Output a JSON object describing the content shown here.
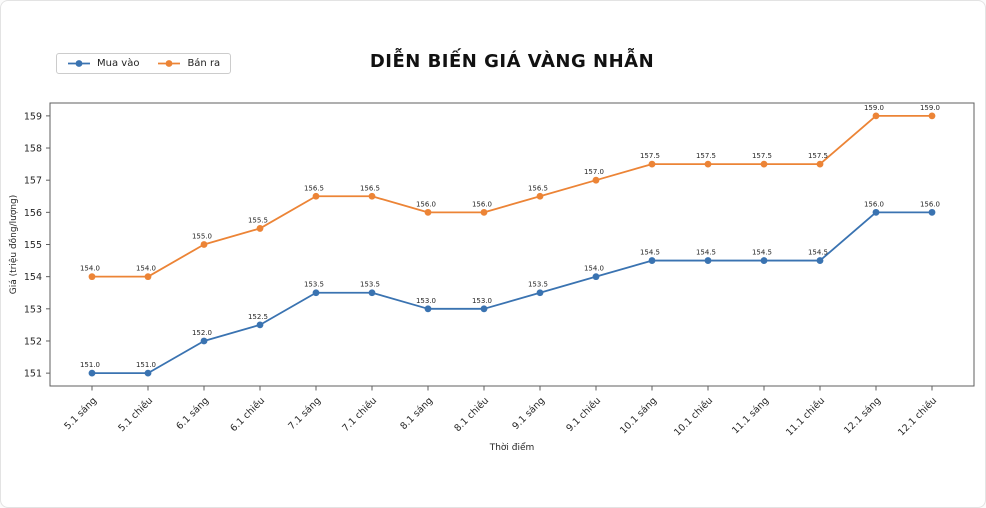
{
  "title": "DIỄN BIẾN GIÁ VÀNG NHẪN",
  "chart_data": {
    "type": "line",
    "title": "DIỄN BIẾN GIÁ VÀNG NHẪN",
    "xlabel": "Thời điểm",
    "ylabel": "Giá (triệu đồng/lượng)",
    "categories": [
      "5.1 sáng",
      "5.1 chiều",
      "6.1 sáng",
      "6.1 chiều",
      "7.1 sáng",
      "7.1 chiều",
      "8.1 sáng",
      "8.1 chiều",
      "9.1 sáng",
      "9.1 chiều",
      "10.1 sáng",
      "10.1 chiều",
      "11.1 sáng",
      "11.1 chiều",
      "12.1 sáng",
      "12.1 chiều"
    ],
    "series": [
      {
        "name": "Mua vào",
        "color": "#3a73b1",
        "values": [
          151.0,
          151.0,
          152.0,
          152.5,
          153.5,
          153.5,
          153.0,
          153.0,
          153.5,
          154.0,
          154.5,
          154.5,
          154.5,
          154.5,
          156.0,
          156.0
        ]
      },
      {
        "name": "Bán ra",
        "color": "#ec8436",
        "values": [
          154.0,
          154.0,
          155.0,
          155.5,
          156.5,
          156.5,
          156.0,
          156.0,
          156.5,
          157.0,
          157.5,
          157.5,
          157.5,
          157.5,
          159.0,
          159.0
        ]
      }
    ],
    "yticks": [
      151,
      152,
      153,
      154,
      155,
      156,
      157,
      158,
      159
    ],
    "ylim": [
      150.6,
      159.4
    ],
    "grid": false,
    "legend_position": "top-left",
    "point_labels": true,
    "marker": "circle"
  }
}
